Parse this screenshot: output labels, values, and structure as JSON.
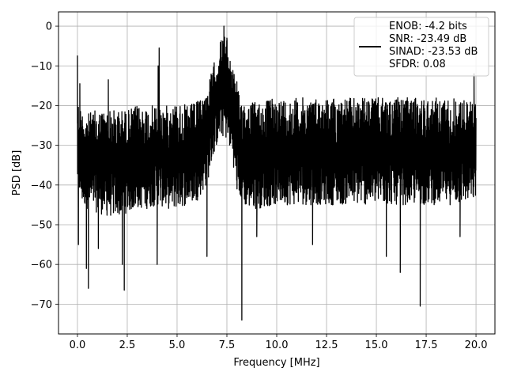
{
  "chart_data": {
    "type": "line",
    "title": "",
    "xlabel": "Frequency [MHz]",
    "ylabel": "PSD [dB]",
    "xlim": [
      -0.95,
      20.95
    ],
    "ylim": [
      -77.5,
      3.6
    ],
    "x_ticks": [
      0.0,
      2.5,
      5.0,
      7.5,
      10.0,
      12.5,
      15.0,
      17.5,
      20.0
    ],
    "x_tick_labels": [
      "0.0",
      "2.5",
      "5.0",
      "7.5",
      "10.0",
      "12.5",
      "15.0",
      "17.5",
      "20.0"
    ],
    "y_ticks": [
      0,
      -10,
      -20,
      -30,
      -40,
      -50,
      -60,
      -70
    ],
    "y_tick_labels": [
      "0",
      "−10",
      "−20",
      "−30",
      "−40",
      "−50",
      "−60",
      "−70"
    ],
    "grid": true,
    "legend_position": "top-right",
    "legend_entries": [
      "ENOB: -4.2 bits",
      "SNR: -23.49 dB",
      "SINAD: -23.53 dB",
      "SFDR: 0.08"
    ],
    "series": [
      {
        "color": "#000000",
        "envelope": {
          "x": [
            0.0,
            0.2,
            0.5,
            1.0,
            1.5,
            2.0,
            2.5,
            3.0,
            3.5,
            4.0,
            4.5,
            5.0,
            5.5,
            6.0,
            6.5,
            6.8,
            7.0,
            7.2,
            7.4,
            7.6,
            7.8,
            8.0,
            8.5,
            9.0,
            10.0,
            11.0,
            12.0,
            13.0,
            14.0,
            15.0,
            16.0,
            17.0,
            18.0,
            19.0,
            20.0
          ],
          "upper": [
            -18,
            -21,
            -22,
            -21,
            -21,
            -21,
            -21,
            -20,
            -20,
            -20,
            -20,
            -19,
            -20,
            -19,
            -16,
            -10,
            -7,
            -3,
            -2,
            -5,
            -10,
            -16,
            -19,
            -19,
            -18,
            -18,
            -18,
            -18,
            -18,
            -18,
            -18,
            -18,
            -18,
            -18,
            -19
          ],
          "lower": [
            -40,
            -45,
            -46,
            -47,
            -48,
            -48,
            -47,
            -46,
            -46,
            -45,
            -46,
            -46,
            -45,
            -44,
            -40,
            -33,
            -30,
            -28,
            -28,
            -30,
            -34,
            -42,
            -46,
            -46,
            -45,
            -45,
            -45,
            -45,
            -45,
            -45,
            -45,
            -45,
            -45,
            -45,
            -44
          ]
        },
        "peaks": [
          {
            "x": 0.0,
            "y": -7.5
          },
          {
            "x": 0.12,
            "y": -14.5
          },
          {
            "x": 1.55,
            "y": -13.5
          },
          {
            "x": 4.05,
            "y": -10.0
          },
          {
            "x": 4.1,
            "y": -5.5
          },
          {
            "x": 7.35,
            "y": 0.0
          },
          {
            "x": 7.5,
            "y": -3.0
          },
          {
            "x": 8.0,
            "y": -14.0
          },
          {
            "x": 19.9,
            "y": -12.0
          }
        ],
        "troughs": [
          {
            "x": 0.05,
            "y": -55.0
          },
          {
            "x": 0.45,
            "y": -61.0
          },
          {
            "x": 0.55,
            "y": -66.0
          },
          {
            "x": 1.05,
            "y": -56.0
          },
          {
            "x": 2.25,
            "y": -60.0
          },
          {
            "x": 2.35,
            "y": -66.5
          },
          {
            "x": 4.0,
            "y": -60.0
          },
          {
            "x": 6.5,
            "y": -58.0
          },
          {
            "x": 8.25,
            "y": -74.0
          },
          {
            "x": 9.0,
            "y": -53.0
          },
          {
            "x": 11.8,
            "y": -55.0
          },
          {
            "x": 15.5,
            "y": -58.0
          },
          {
            "x": 16.2,
            "y": -62.0
          },
          {
            "x": 17.2,
            "y": -70.5
          },
          {
            "x": 19.2,
            "y": -53.0
          }
        ]
      }
    ]
  }
}
